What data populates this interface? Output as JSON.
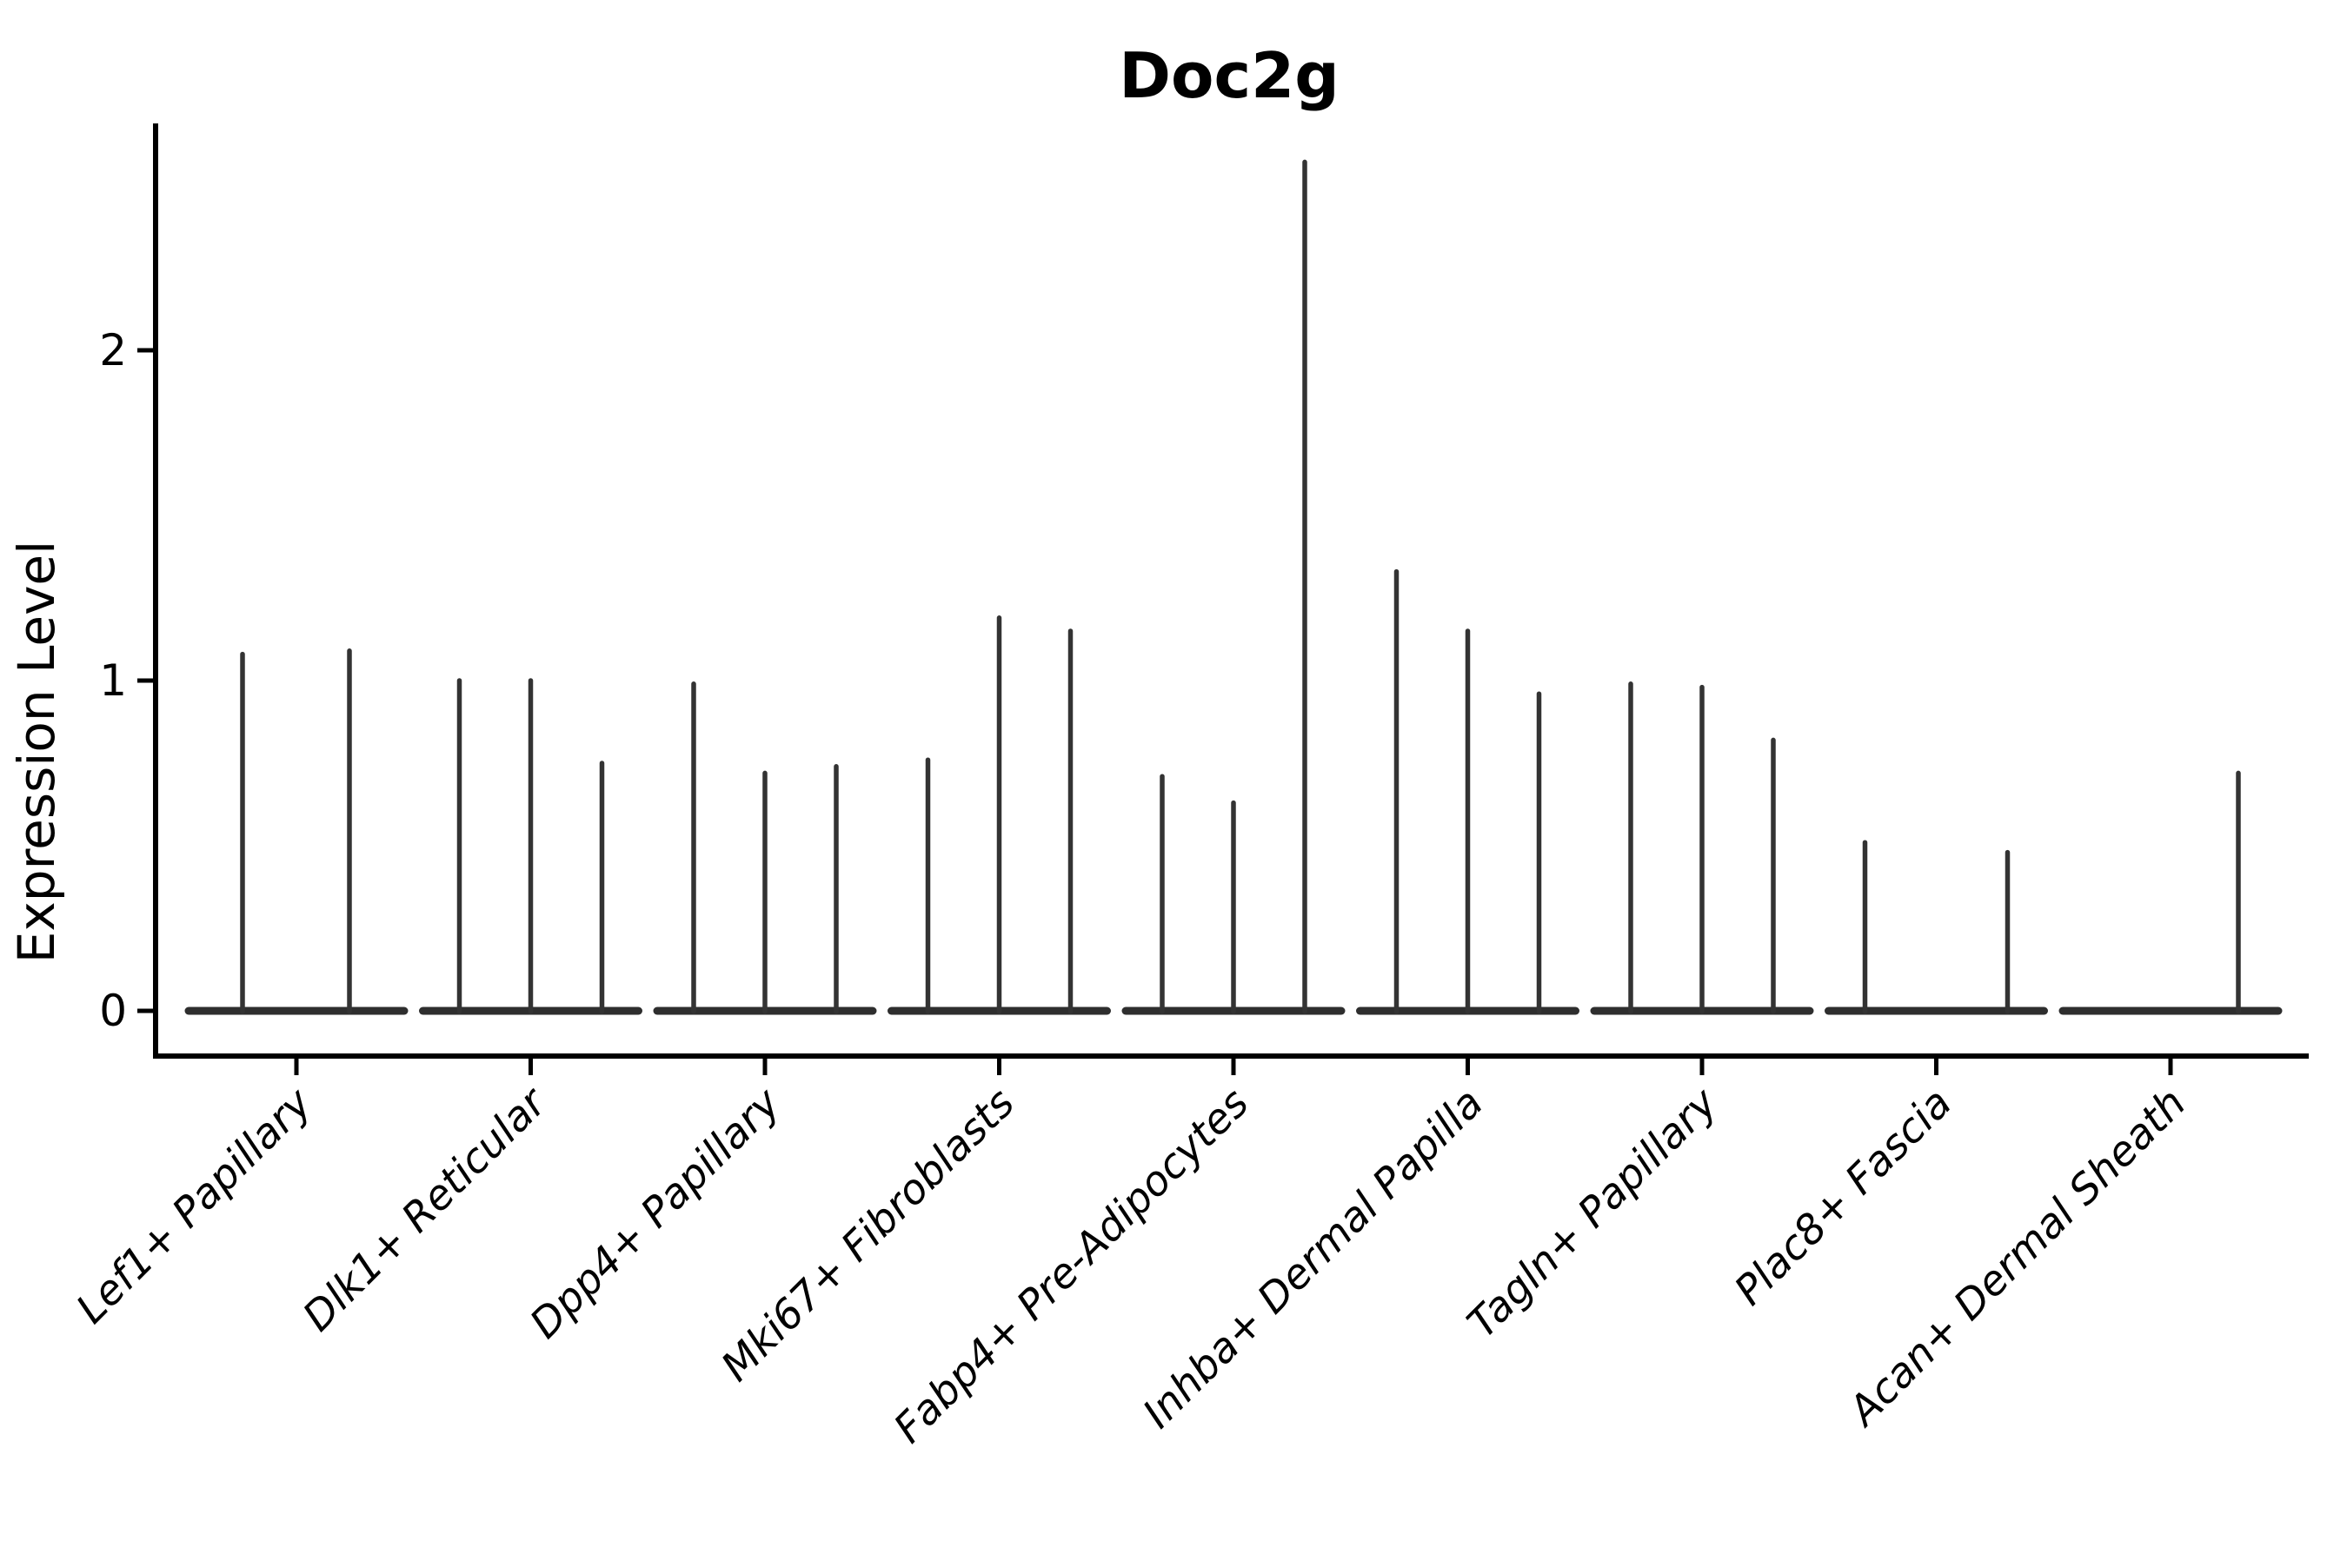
{
  "chart_data": {
    "type": "violin",
    "title": "Doc2g",
    "ylabel": "Expression Level",
    "xlabel": "",
    "yticks": [
      0,
      1,
      2
    ],
    "ylim": [
      -0.14,
      2.69
    ],
    "grid": false,
    "legend": "none",
    "categories": [
      "Lef1+ Papillary",
      "Dlk1+ Reticular",
      "Dpp4+ Papillary",
      "Mki67+ Fibroblasts",
      "Fabp4+ Pre-Adipocytes",
      "Inhba+ Dermal Papilla",
      "Tagln+ Papillary",
      "Plac8+ Fascia",
      "Acan+ Dermal Sheath"
    ],
    "groups": [
      {
        "category": "Lef1+ Papillary",
        "violins": [
          {
            "offset": -62,
            "max": 1.08
          },
          {
            "offset": 61,
            "max": 1.09
          }
        ]
      },
      {
        "category": "Dlk1+ Reticular",
        "violins": [
          {
            "offset": -82,
            "max": 1.0
          },
          {
            "offset": 0,
            "max": 1.0
          },
          {
            "offset": 82,
            "max": 0.75
          }
        ]
      },
      {
        "category": "Dpp4+ Papillary",
        "violins": [
          {
            "offset": -82,
            "max": 0.99
          },
          {
            "offset": 0,
            "max": 0.72
          },
          {
            "offset": 82,
            "max": 0.74
          }
        ]
      },
      {
        "category": "Mki67+ Fibroblasts",
        "violins": [
          {
            "offset": -82,
            "max": 0.76
          },
          {
            "offset": 0,
            "max": 1.19
          },
          {
            "offset": 82,
            "max": 1.15
          }
        ]
      },
      {
        "category": "Fabp4+ Pre-Adipocytes",
        "violins": [
          {
            "offset": -82,
            "max": 0.71
          },
          {
            "offset": 0,
            "max": 0.63
          },
          {
            "offset": 82,
            "max": 2.57
          }
        ]
      },
      {
        "category": "Inhba+ Dermal Papilla",
        "violins": [
          {
            "offset": -82,
            "max": 1.33
          },
          {
            "offset": 0,
            "max": 1.15
          },
          {
            "offset": 82,
            "max": 0.96
          }
        ]
      },
      {
        "category": "Tagln+ Papillary",
        "violins": [
          {
            "offset": -82,
            "max": 0.99
          },
          {
            "offset": 0,
            "max": 0.98
          },
          {
            "offset": 82,
            "max": 0.82
          }
        ]
      },
      {
        "category": "Plac8+ Fascia",
        "violins": [
          {
            "offset": -82,
            "max": 0.51
          },
          {
            "offset": 82,
            "max": 0.48
          }
        ]
      },
      {
        "category": "Acan+ Dermal Sheath",
        "violins": [
          {
            "offset": 78,
            "max": 0.72
          }
        ]
      }
    ],
    "colors": {
      "violin_line": "#333333",
      "violin_base": "#2e2e2e",
      "axis": "#000000",
      "text": "#000000",
      "background": "#ffffff"
    }
  }
}
